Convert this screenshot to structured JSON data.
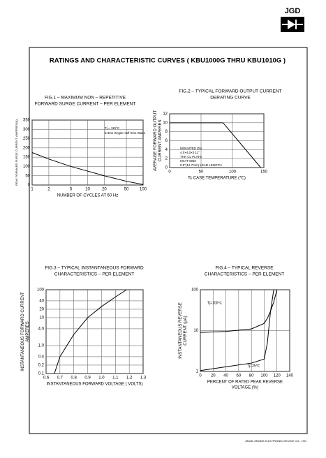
{
  "header": {
    "logo": "JGD",
    "title": "RATINGS AND CHARACTERISTIC CURVES ( KBU1000G THRU KBU1010G )"
  },
  "footer": "JINAN JINGDE ELECTRONIC DEVICE CO., LTD.",
  "chart_data": [
    {
      "type": "line",
      "title": [
        "FIG.1 – MAXIMUM NON – REPETITIVE",
        "FORWARD SURGE CURRENT – PER ELEMENT"
      ],
      "xlabel": [
        "NUMBER OF CYCLES AT 60 Hz"
      ],
      "ylabel": [
        "PEAK FORWARD SURGE CURRENT, AMPERES(A)"
      ],
      "annotations": [
        "Tj = 110°C",
        "8.3ms Single Half Sine Wave"
      ],
      "xscale": "log",
      "xlim": [
        1,
        100
      ],
      "xticks": [
        1,
        2,
        5,
        10,
        20,
        50,
        100
      ],
      "ylim": [
        0,
        350
      ],
      "yticks": [
        0,
        50,
        100,
        150,
        200,
        250,
        300,
        350
      ],
      "grid": true,
      "x": [
        1,
        2,
        5,
        10,
        20,
        50,
        100
      ],
      "series": [
        {
          "color": "#000000",
          "values": [
            175,
            140,
            100,
            75,
            50,
            20,
            3
          ]
        }
      ]
    },
    {
      "type": "line",
      "title": [
        "FIG.2 – TYPICAL FORWARD OUTPUT CURRENT",
        "DERATING CURVE"
      ],
      "xlabel": [
        "Tc    CASE TEMPERATURE (℃)"
      ],
      "ylabel": [
        "AVERAGE FORWARD OUTPUT",
        "CURRENT AMPERES"
      ],
      "annotations": [
        "MOUNTED ON",
        "4.0×4.0×0.11\"",
        "THK Cu PLATE",
        "HEAT-SINK",
        "0.5\"(12.7mm) LEAD LENGTH"
      ],
      "xlim": [
        0,
        150
      ],
      "xticks": [
        0,
        50,
        100,
        150
      ],
      "ylim": [
        0,
        12
      ],
      "yticks": [
        0,
        2,
        4,
        6,
        8,
        10,
        12
      ],
      "grid": true,
      "x": [
        0,
        85,
        145
      ],
      "series": [
        {
          "color": "#000000",
          "values": [
            10,
            10,
            0
          ]
        }
      ]
    },
    {
      "type": "line",
      "title": [
        "FIG.3 – TYPICAL INSTANTANEOUS FORWARD",
        "CHARACTERISTICS – PER ELEMENT"
      ],
      "xlabel": [
        "INSTANTANEOUS FORWARD VOLTAGE ( VOLTS)"
      ],
      "ylabel": [
        "INSTANTANEOUS FORWARD CURRENT",
        "AMPERES"
      ],
      "annotations": [],
      "xlim": [
        0.6,
        1.3
      ],
      "xticks": [
        0.6,
        0.7,
        0.8,
        0.9,
        {
          "value": 1.0,
          "label": "1.0"
        },
        1.1,
        1.2,
        1.3
      ],
      "yscale": "log",
      "ylim": [
        0.1,
        100
      ],
      "yticks": [
        0.1,
        0.2,
        0.4,
        {
          "value": 1,
          "label": "1.0"
        },
        {
          "value": 4,
          "label": "4.0"
        },
        10,
        20,
        40,
        100
      ],
      "grid": true,
      "x": [
        0.66,
        0.7,
        0.75,
        0.8,
        0.85,
        0.9,
        1.0,
        1.1,
        1.18
      ],
      "series": [
        {
          "color": "#000000",
          "values": [
            0.1,
            0.4,
            1,
            2.5,
            5,
            10,
            25,
            55,
            100
          ]
        }
      ]
    },
    {
      "type": "line",
      "title": [
        "FIG.4 – TYPICAL REVERSE",
        "CHARACTERISTICS – PER ELEMENT"
      ],
      "xlabel": [
        "PERCENT OF RATED PEAK REVERSE",
        "VOLTAGE (%)"
      ],
      "ylabel": [
        "INSTANTANEOUS REVERSE",
        "CURRENT (µA)"
      ],
      "annotations": [],
      "xlim": [
        0,
        140
      ],
      "xticks": [
        0,
        20,
        40,
        60,
        80,
        100,
        120,
        140
      ],
      "yscale": "log",
      "ylim": [
        1,
        100
      ],
      "yticks": [
        1,
        10,
        100
      ],
      "grid": true,
      "x": [
        0,
        40,
        80,
        100,
        105,
        110,
        115,
        120
      ],
      "series": [
        {
          "name": "Tj=100℃",
          "color": "#000000",
          "values": [
            9,
            9.5,
            11,
            15,
            20,
            30,
            50,
            100
          ]
        },
        {
          "name": "Tj=25℃",
          "color": "#000000",
          "values": [
            1.05,
            1.3,
            1.6,
            2,
            5,
            30,
            100,
            null
          ]
        }
      ]
    }
  ]
}
